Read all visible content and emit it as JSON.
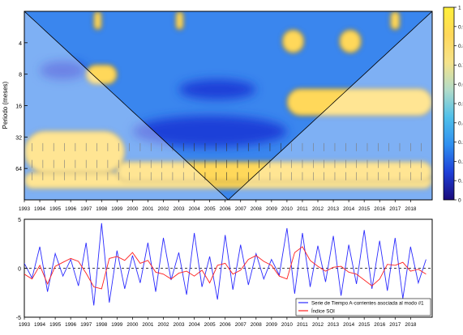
{
  "chart_data": [
    {
      "type": "heatmap",
      "subtype": "wavelet-coherence",
      "ylabel": "Periodo (meses)",
      "y_scale": "log2",
      "y_ticks": [
        4,
        8,
        16,
        32,
        64
      ],
      "ylim": [
        2,
        128
      ],
      "x_ticks": [
        "1993",
        "1994",
        "1995",
        "1996",
        "1997",
        "1998",
        "1999",
        "2000",
        "2001",
        "2002",
        "2003",
        "2004",
        "2005",
        "2006",
        "2007",
        "2008",
        "2009",
        "2010",
        "2011",
        "2012",
        "2013",
        "2014",
        "2015",
        "2016",
        "2017",
        "2018"
      ],
      "xlim": [
        1993,
        2019.4
      ],
      "colorbar": {
        "ticks": [
          "0",
          "0.1",
          "0.2",
          "0.3",
          "0.4",
          "0.5",
          "0.6",
          "0.7",
          "0.8",
          "0.9",
          "1"
        ],
        "range": [
          0,
          1
        ],
        "stops": [
          "#1a0a7a",
          "#1e3fd8",
          "#2f8ff0",
          "#4fc0ea",
          "#b2dcc9",
          "#f6e38a",
          "#ffd85a",
          "#fff03a"
        ]
      },
      "high_coherence_regions": [
        {
          "period": [
            70,
            100
          ],
          "time": [
            1993,
            2019.4
          ],
          "level": 0.85
        },
        {
          "period": [
            28,
            70
          ],
          "time": [
            1993,
            1999.5
          ],
          "level": 0.8
        },
        {
          "period": [
            55,
            85
          ],
          "time": [
            1999,
            2019.4
          ],
          "level": 0.9
        },
        {
          "period": [
            11,
            20
          ],
          "time": [
            2010,
            2019.4
          ],
          "level": 0.85
        },
        {
          "period": [
            6.5,
            10
          ],
          "time": [
            1997,
            1999
          ],
          "level": 0.85
        },
        {
          "period": [
            2,
            3
          ],
          "time": [
            1997.5,
            1998
          ],
          "level": 0.9
        },
        {
          "period": [
            2,
            3
          ],
          "time": [
            2002.8,
            2003.3
          ],
          "level": 0.9
        },
        {
          "period": [
            2,
            3
          ],
          "time": [
            2016.7,
            2017.3
          ],
          "level": 0.9
        },
        {
          "period": [
            3,
            5
          ],
          "time": [
            2013.4,
            2014.8
          ],
          "level": 0.85
        },
        {
          "period": [
            3,
            5
          ],
          "time": [
            2009.7,
            2011.1
          ],
          "level": 0.85
        }
      ],
      "low_coherence_regions": [
        {
          "period": [
            20,
            40
          ],
          "time": [
            2000,
            2010
          ],
          "level": 0.1
        },
        {
          "period": [
            6,
            9
          ],
          "time": [
            1994,
            1997
          ],
          "level": 0.15
        },
        {
          "period": [
            9,
            14
          ],
          "time": [
            2003,
            2008
          ],
          "level": 0.2
        }
      ]
    },
    {
      "type": "line",
      "xlim": [
        1993,
        2019.4
      ],
      "ylim": [
        -5,
        5
      ],
      "y_ticks": [
        "-5",
        "0",
        "5"
      ],
      "x_ticks": [
        "1993",
        "1994",
        "1995",
        "1996",
        "1997",
        "1998",
        "1999",
        "2000",
        "2001",
        "2002",
        "2003",
        "2004",
        "2005",
        "2006",
        "2007",
        "2008",
        "2009",
        "2010",
        "2011",
        "2012",
        "2013",
        "2014",
        "2015",
        "2016",
        "2017",
        "2018"
      ],
      "legend_position": "bottom-right",
      "series": [
        {
          "name": "Serie de Tiempo A-corrientes  asociada al modo #1",
          "color": "#2b2bff",
          "x": [
            1993.0,
            1993.5,
            1994.0,
            1994.5,
            1995.0,
            1995.5,
            1996.0,
            1996.5,
            1997.0,
            1997.5,
            1998.0,
            1998.5,
            1999.0,
            1999.5,
            2000.0,
            2000.5,
            2001.0,
            2001.5,
            2002.0,
            2002.5,
            2003.0,
            2003.5,
            2004.0,
            2004.5,
            2005.0,
            2005.5,
            2006.0,
            2006.5,
            2007.0,
            2007.5,
            2008.0,
            2008.5,
            2009.0,
            2009.5,
            2010.0,
            2010.5,
            2011.0,
            2011.5,
            2012.0,
            2012.5,
            2013.0,
            2013.5,
            2014.0,
            2014.5,
            2015.0,
            2015.5,
            2016.0,
            2016.5,
            2017.0,
            2017.5,
            2018.0,
            2018.5,
            2019.0
          ],
          "y": [
            0.5,
            -1.0,
            2.2,
            -2.4,
            1.5,
            -0.8,
            0.9,
            -1.8,
            2.6,
            -3.8,
            4.6,
            -3.5,
            1.8,
            -2.1,
            1.3,
            -1.5,
            2.6,
            -2.4,
            3.1,
            -1.2,
            1.6,
            -2.7,
            3.6,
            -1.9,
            1.2,
            -3.2,
            3.4,
            -2.2,
            2.4,
            -1.7,
            1.5,
            -1.1,
            0.9,
            -0.7,
            4.1,
            -2.6,
            3.6,
            -1.9,
            2.3,
            -1.4,
            3.3,
            -2.8,
            2.4,
            -1.6,
            3.9,
            -2.1,
            2.8,
            -2.3,
            3.1,
            -3.1,
            2.2,
            -1.5,
            0.9
          ]
        },
        {
          "name": "Índice SOI",
          "color": "#ff2020",
          "x": [
            1993.0,
            1993.5,
            1994.0,
            1994.5,
            1995.0,
            1995.5,
            1996.0,
            1996.5,
            1997.0,
            1997.5,
            1998.0,
            1998.5,
            1999.0,
            1999.5,
            2000.0,
            2000.5,
            2001.0,
            2001.5,
            2002.0,
            2002.5,
            2003.0,
            2003.5,
            2004.0,
            2004.5,
            2005.0,
            2005.5,
            2006.0,
            2006.5,
            2007.0,
            2007.5,
            2008.0,
            2008.5,
            2009.0,
            2009.5,
            2010.0,
            2010.5,
            2011.0,
            2011.5,
            2012.0,
            2012.5,
            2013.0,
            2013.5,
            2014.0,
            2014.5,
            2015.0,
            2015.5,
            2016.0,
            2016.5,
            2017.0,
            2017.5,
            2018.0,
            2018.5,
            2019.0
          ],
          "y": [
            -0.6,
            -1.1,
            0.3,
            -1.6,
            0.2,
            0.6,
            1.0,
            0.7,
            -0.5,
            -1.9,
            -2.1,
            1.0,
            1.2,
            0.8,
            1.6,
            0.5,
            0.8,
            -0.4,
            -0.6,
            -1.1,
            -0.5,
            -0.3,
            -0.8,
            -0.2,
            -1.5,
            0.3,
            0.5,
            -0.6,
            -0.2,
            0.9,
            1.3,
            0.7,
            0.3,
            -0.8,
            -1.1,
            1.6,
            2.2,
            0.8,
            0.2,
            -0.3,
            0.1,
            0.2,
            -0.4,
            -0.6,
            -1.2,
            -1.8,
            -1.1,
            0.4,
            0.3,
            0.6,
            -0.3,
            -0.1,
            -0.6
          ]
        }
      ]
    }
  ]
}
